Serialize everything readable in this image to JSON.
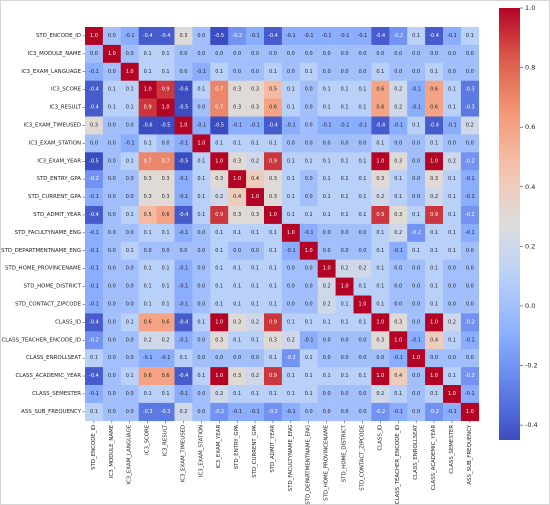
{
  "chart_data": {
    "type": "heatmap",
    "title": "",
    "variables": [
      "STD_ENCODE_ID",
      "IC3_MODULE_NAME",
      "IC3_EXAM_LANGUAGE",
      "IC3_SCORE",
      "IC3_RESULT",
      "IC3_EXAM_TIMEUSED",
      "IC3_EXAM_STATION",
      "IC3_EXAM_YEAR",
      "STD_ENTRY_GPA",
      "STD_CURRENT_GPA",
      "STD_ADMIT_YEAR",
      "STD_FACULTYNAME_ENG",
      "STD_DEPARTMENTNAME_ENG",
      "STD_HOME_PROVINCENAME",
      "STD_HOME_DISTRICT",
      "STD_CONTACT_ZIPCODE",
      "CLASS_ID",
      "CLASS_TEACHER_ENCODE_ID",
      "CLASS_ENROLLSEAT",
      "CLASS_ACADEMIC_YEAR",
      "CLASS_SEMESTER",
      "ASS_SUB_FREQUENCY"
    ],
    "matrix": [
      [
        1.0,
        0.0,
        -0.1,
        -0.4,
        -0.4,
        0.3,
        0.0,
        -0.5,
        -0.2,
        -0.1,
        -0.4,
        -0.1,
        -0.1,
        -0.1,
        -0.1,
        -0.1,
        -0.4,
        -0.2,
        0.1,
        -0.4,
        -0.1,
        0.1
      ],
      [
        0.0,
        1.0,
        0.0,
        0.1,
        0.1,
        0.0,
        0.0,
        0.0,
        0.0,
        0.0,
        0.0,
        0.0,
        0.0,
        0.0,
        0.0,
        0.0,
        0.0,
        0.0,
        0.0,
        0.0,
        0.0,
        0.0
      ],
      [
        -0.1,
        0.0,
        1.0,
        0.1,
        0.1,
        -0.0,
        -0.1,
        0.1,
        0.0,
        0.0,
        0.1,
        0.0,
        0.1,
        0.0,
        0.0,
        0.0,
        0.1,
        0.0,
        0.0,
        0.1,
        0.0,
        0.0
      ],
      [
        -0.4,
        0.1,
        0.1,
        1.0,
        0.9,
        -0.6,
        0.1,
        0.7,
        0.3,
        0.3,
        0.5,
        0.1,
        0.0,
        0.1,
        0.1,
        0.1,
        0.6,
        0.2,
        -0.1,
        0.6,
        0.1,
        -0.3
      ],
      [
        -0.4,
        0.1,
        0.1,
        0.9,
        1.0,
        -0.5,
        0.0,
        0.7,
        0.3,
        0.3,
        0.6,
        0.1,
        0.0,
        0.1,
        0.1,
        0.1,
        0.6,
        0.2,
        -0.1,
        0.6,
        0.1,
        -0.3
      ],
      [
        0.3,
        0.0,
        -0.0,
        -0.6,
        -0.5,
        1.0,
        -0.1,
        -0.5,
        -0.1,
        -0.1,
        -0.4,
        -0.1,
        0.0,
        -0.1,
        -0.1,
        -0.1,
        -0.4,
        -0.1,
        0.1,
        -0.4,
        -0.1,
        0.2
      ],
      [
        0.0,
        0.0,
        -0.1,
        0.1,
        0.0,
        -0.1,
        1.0,
        0.1,
        0.1,
        0.1,
        0.1,
        0.0,
        0.0,
        0.0,
        0.0,
        0.0,
        0.1,
        0.0,
        0.0,
        0.1,
        0.0,
        0.0
      ],
      [
        -0.5,
        0.0,
        0.1,
        0.7,
        0.7,
        -0.5,
        0.1,
        1.0,
        0.3,
        0.2,
        0.9,
        0.1,
        0.1,
        0.1,
        0.1,
        0.1,
        1.0,
        0.3,
        0.0,
        1.0,
        0.2,
        -0.2
      ],
      [
        -0.2,
        0.0,
        0.0,
        0.3,
        0.3,
        -0.1,
        0.1,
        0.3,
        1.0,
        0.4,
        0.3,
        0.1,
        0.0,
        0.1,
        0.1,
        0.1,
        0.3,
        0.1,
        0.0,
        0.3,
        0.1,
        -0.1
      ],
      [
        -0.1,
        0.0,
        0.0,
        0.3,
        0.3,
        -0.1,
        0.1,
        0.2,
        0.4,
        1.0,
        0.3,
        0.1,
        0.0,
        0.1,
        0.1,
        0.1,
        0.2,
        0.1,
        0.0,
        0.2,
        0.1,
        -0.1
      ],
      [
        -0.4,
        0.0,
        0.1,
        0.5,
        0.6,
        -0.4,
        0.1,
        0.9,
        0.3,
        0.3,
        1.0,
        0.1,
        0.1,
        0.1,
        0.1,
        0.1,
        0.9,
        0.3,
        0.1,
        0.9,
        0.1,
        -0.2
      ],
      [
        -0.1,
        0.0,
        0.0,
        0.1,
        0.1,
        -0.1,
        0.0,
        0.1,
        0.1,
        0.1,
        0.1,
        1.0,
        -0.1,
        0.0,
        0.0,
        0.0,
        0.1,
        0.2,
        -0.2,
        0.1,
        0.1,
        -0.1
      ],
      [
        -0.1,
        0.0,
        0.1,
        0.0,
        0.0,
        0.0,
        0.0,
        0.1,
        0.0,
        0.0,
        0.1,
        -0.1,
        1.0,
        0.0,
        0.0,
        0.0,
        0.1,
        -0.1,
        0.1,
        0.1,
        0.1,
        0.0
      ],
      [
        -0.1,
        0.0,
        0.0,
        0.1,
        0.1,
        -0.1,
        0.0,
        0.1,
        0.1,
        0.1,
        0.1,
        0.0,
        0.0,
        1.0,
        0.2,
        0.2,
        0.1,
        0.0,
        0.0,
        0.1,
        0.0,
        0.0
      ],
      [
        -0.1,
        0.0,
        0.0,
        0.1,
        0.1,
        -0.1,
        0.0,
        0.1,
        0.1,
        0.1,
        0.1,
        0.0,
        0.0,
        0.2,
        1.0,
        0.1,
        0.1,
        0.0,
        0.0,
        0.1,
        0.0,
        0.0
      ],
      [
        -0.1,
        0.0,
        0.0,
        0.1,
        0.1,
        -0.1,
        0.0,
        0.1,
        0.1,
        0.1,
        0.1,
        0.0,
        0.0,
        0.2,
        0.1,
        1.0,
        0.1,
        0.0,
        0.0,
        0.1,
        0.0,
        0.0
      ],
      [
        -0.4,
        0.0,
        0.1,
        0.6,
        0.6,
        -0.4,
        0.1,
        1.0,
        0.3,
        0.2,
        0.9,
        0.1,
        0.1,
        0.1,
        0.1,
        0.1,
        1.0,
        0.3,
        0.0,
        1.0,
        0.2,
        -0.2
      ],
      [
        -0.2,
        0.0,
        0.0,
        0.2,
        0.2,
        -0.1,
        0.0,
        0.3,
        0.1,
        0.1,
        0.3,
        0.2,
        -0.1,
        0.0,
        0.0,
        0.0,
        0.3,
        1.0,
        -0.1,
        0.4,
        0.1,
        -0.1
      ],
      [
        0.1,
        0.0,
        0.0,
        -0.1,
        -0.1,
        0.1,
        0.0,
        0.0,
        0.0,
        0.0,
        0.1,
        -0.2,
        0.1,
        0.0,
        0.0,
        0.0,
        0.0,
        -0.1,
        1.0,
        0.0,
        0.0,
        0.0
      ],
      [
        -0.4,
        0.0,
        0.1,
        0.6,
        0.6,
        -0.4,
        0.1,
        1.0,
        0.3,
        0.2,
        0.9,
        0.1,
        0.1,
        0.1,
        0.1,
        0.1,
        1.0,
        0.4,
        0.0,
        1.0,
        0.1,
        -0.2
      ],
      [
        -0.1,
        0.0,
        0.0,
        0.1,
        0.1,
        -0.1,
        0.0,
        0.2,
        0.1,
        0.1,
        0.1,
        0.1,
        0.1,
        0.0,
        0.0,
        0.0,
        0.2,
        0.1,
        0.0,
        0.1,
        1.0,
        -0.1
      ],
      [
        0.1,
        0.0,
        0.0,
        -0.3,
        -0.3,
        0.2,
        0.0,
        -0.2,
        -0.1,
        -0.1,
        -0.2,
        -0.1,
        0.0,
        0.0,
        0.0,
        0.0,
        -0.2,
        -0.1,
        0.0,
        -0.2,
        -0.1,
        1.0
      ]
    ],
    "value_format": "1 decimal",
    "colormap": "coolwarm",
    "colorbar": {
      "min": -0.45,
      "max": 1.0,
      "ticks": [
        1.0,
        0.8,
        0.6,
        0.4,
        0.2,
        0.0,
        -0.2,
        -0.4
      ],
      "tick_labels": [
        "1.0",
        "0.8",
        "0.6",
        "0.4",
        "0.2",
        "0.0",
        "-0.2",
        "-0.4"
      ]
    },
    "grid": false,
    "legend": "colorbar-right"
  }
}
